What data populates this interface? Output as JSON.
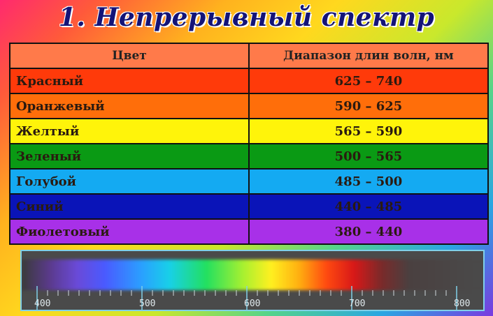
{
  "title": "1. Непрерывный спектр",
  "table": {
    "headers": [
      "Цвет",
      "Диапазон длин волн, нм"
    ],
    "rows": [
      {
        "color": "Красный",
        "range": "625 – 740",
        "bg": "#ff3a0a"
      },
      {
        "color": "Оранжевый",
        "range": "590 – 625",
        "bg": "#ff6e0a"
      },
      {
        "color": "Желтый",
        "range": "565 – 590",
        "bg": "#fff40a"
      },
      {
        "color": "Зеленый",
        "range": "500 – 565",
        "bg": "#0a9a14"
      },
      {
        "color": "Голубой",
        "range": "485 – 500",
        "bg": "#14aaf2"
      },
      {
        "color": "Синий",
        "range": "440 – 485",
        "bg": "#0a14b8"
      },
      {
        "color": "Фиолетовый",
        "range": "380 – 440",
        "bg": "#a830e8"
      }
    ]
  },
  "spectrum": {
    "scale_min": 400,
    "scale_max": 800,
    "labels": [
      "400",
      "500",
      "600",
      "700",
      "800"
    ]
  }
}
